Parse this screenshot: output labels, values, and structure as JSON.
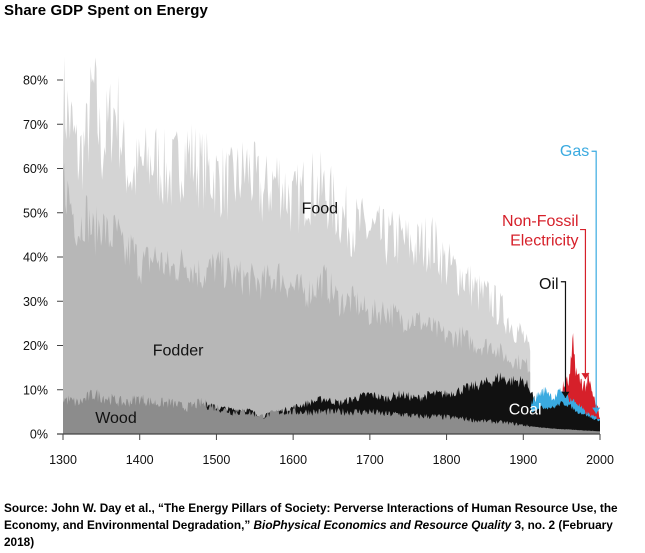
{
  "title": "Share GDP Spent on Energy",
  "colors": {
    "food": "#d4d4d4",
    "fodder": "#b7b7b7",
    "wood": "#8c8c8c",
    "coal": "#111111",
    "oil": "#111111",
    "non_fossil_electricity": "#d6202a",
    "gas": "#3aaae0",
    "axis": "#444444"
  },
  "chart_data": {
    "type": "area",
    "title": "Share GDP Spent on Energy",
    "xlabel": "",
    "ylabel": "",
    "xlim": [
      1300,
      2000
    ],
    "ylim": [
      0,
      80
    ],
    "x_ticks": [
      1300,
      1400,
      1500,
      1600,
      1700,
      1800,
      1900,
      2000
    ],
    "x_tick_labels": [
      "1300",
      "1400",
      "1500",
      "1600",
      "1700",
      "1800",
      "1900",
      "2000"
    ],
    "y_ticks": [
      0,
      10,
      20,
      30,
      40,
      50,
      60,
      70,
      80
    ],
    "y_tick_labels": [
      "0%",
      "10%",
      "20%",
      "30%",
      "40%",
      "50%",
      "60%",
      "70%",
      "80%"
    ],
    "stacking": "cumulative top of each layer, percent of GDP",
    "series": [
      {
        "name": "Food",
        "label": "Food",
        "x": [
          1300,
          1310,
          1320,
          1330,
          1340,
          1350,
          1360,
          1370,
          1380,
          1390,
          1400,
          1420,
          1440,
          1460,
          1480,
          1500,
          1520,
          1540,
          1560,
          1580,
          1600,
          1620,
          1640,
          1660,
          1680,
          1700,
          1720,
          1740,
          1760,
          1780,
          1800,
          1820,
          1840,
          1860,
          1880,
          1900,
          1910
        ],
        "values": [
          76,
          70,
          62,
          66,
          78,
          64,
          70,
          74,
          62,
          58,
          60,
          62,
          58,
          64,
          60,
          58,
          56,
          60,
          54,
          58,
          52,
          56,
          55,
          50,
          47,
          46,
          44,
          44,
          42,
          44,
          38,
          36,
          32,
          30,
          26,
          22,
          17
        ]
      },
      {
        "name": "Fodder",
        "label": "Fodder",
        "x": [
          1300,
          1310,
          1320,
          1330,
          1340,
          1350,
          1360,
          1370,
          1380,
          1390,
          1400,
          1420,
          1440,
          1460,
          1480,
          1500,
          1520,
          1540,
          1560,
          1580,
          1600,
          1620,
          1640,
          1660,
          1680,
          1700,
          1720,
          1740,
          1760,
          1780,
          1800,
          1820,
          1840,
          1860,
          1880,
          1900,
          1910
        ],
        "values": [
          58,
          52,
          46,
          50,
          45,
          48,
          44,
          46,
          40,
          42,
          38,
          40,
          37,
          39,
          36,
          38,
          36,
          35,
          34,
          36,
          33,
          32,
          35,
          30,
          30,
          27,
          28,
          26,
          26,
          24,
          22,
          22,
          20,
          20,
          17,
          16,
          15
        ]
      },
      {
        "name": "Wood",
        "label": "Wood",
        "x": [
          1300,
          1320,
          1340,
          1360,
          1380,
          1400,
          1420,
          1440,
          1460,
          1480,
          1500,
          1520,
          1540,
          1560,
          1580,
          1600,
          1620,
          1640,
          1660,
          1680,
          1700,
          1720,
          1740,
          1760,
          1780,
          1800,
          1820,
          1840,
          1860,
          1880,
          1900,
          1920,
          1940,
          1960,
          1980,
          2000
        ],
        "values": [
          8,
          7,
          9,
          8,
          7,
          8,
          7,
          7,
          6,
          7,
          6,
          5,
          5,
          4,
          5,
          5,
          5,
          5,
          5,
          5,
          5,
          4.5,
          4.5,
          4,
          4,
          3.8,
          3.5,
          3,
          2.8,
          2.5,
          2,
          1.5,
          1.2,
          1,
          0.8,
          0.6
        ]
      },
      {
        "name": "Coal",
        "label": "Coal",
        "x": [
          1300,
          1480,
          1500,
          1520,
          1540,
          1560,
          1580,
          1600,
          1620,
          1640,
          1660,
          1680,
          1700,
          1720,
          1740,
          1760,
          1780,
          1800,
          1820,
          1840,
          1860,
          1870,
          1880,
          1900,
          1910,
          1920,
          1940,
          1960,
          1980,
          2000
        ],
        "values": [
          8,
          7,
          6,
          5.5,
          5.5,
          4,
          5,
          6,
          7,
          8,
          7,
          8,
          9,
          8,
          9,
          8,
          9,
          9,
          10,
          11,
          12,
          13,
          12,
          12,
          10,
          5,
          4,
          3,
          2.5,
          2
        ]
      },
      {
        "name": "Oil",
        "label": "Oil",
        "x": [
          1910,
          1920,
          1940,
          1950,
          1960,
          1970,
          1980,
          1990,
          2000
        ],
        "values": [
          5,
          6,
          6,
          7,
          6.5,
          5,
          4.5,
          3.5,
          3
        ]
      },
      {
        "name": "Gas",
        "label": "Gas",
        "x": [
          1910,
          1920,
          1930,
          1940,
          1950,
          1960,
          1970,
          1980,
          1990,
          2000
        ],
        "values": [
          7,
          9,
          10,
          8,
          10,
          8,
          7,
          5,
          4,
          3.5
        ]
      },
      {
        "name": "Non-Fossil Electricity",
        "label": "Non-Fossil\nElectricity",
        "x": [
          1950,
          1960,
          1965,
          1970,
          1975,
          1980,
          1985,
          1990,
          2000
        ],
        "values": [
          10,
          12,
          20,
          13,
          12,
          11,
          12,
          9,
          4
        ]
      }
    ],
    "annotations": [
      {
        "text": "Food",
        "series": "Food"
      },
      {
        "text": "Fodder",
        "series": "Fodder"
      },
      {
        "text": "Wood",
        "series": "Wood"
      },
      {
        "text": "Coal",
        "series": "Coal"
      },
      {
        "text": "Oil",
        "series": "Oil",
        "x": 1955,
        "y": 8
      },
      {
        "text": "Non-Fossil",
        "series": "Non-Fossil Electricity",
        "x": 1980,
        "y": 12
      },
      {
        "text": "Electricity",
        "series": "Non-Fossil Electricity",
        "x": 1980,
        "y": 12
      },
      {
        "text": "Gas",
        "series": "Gas",
        "x": 1995,
        "y": 5
      }
    ]
  },
  "source": {
    "prefix": "Source: John W. Day et al., “The Energy Pillars of Society: Perverse Interactions of Human Resource Use, the Economy, and Environmental Degradation,” ",
    "journal": "BioPhysical Economics and Resource Quality",
    "suffix": " 3, no. 2 (February 2018)"
  }
}
